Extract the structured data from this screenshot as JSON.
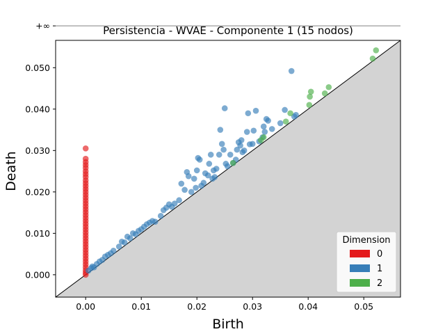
{
  "chart_data": {
    "type": "scatter",
    "title": "Persistencia - WVAE - Componente 1 (15 nodos)",
    "xlabel": "Birth",
    "ylabel": "Death",
    "xlim": [
      -0.0054,
      0.0566
    ],
    "ylim": [
      -0.0054,
      0.0566
    ],
    "infinity_label": "+∞",
    "infinity_value": 0.0601,
    "grid": false,
    "diagonal": true,
    "x_ticks": [
      {
        "value": 0.0,
        "label": "0.00"
      },
      {
        "value": 0.01,
        "label": "0.01"
      },
      {
        "value": 0.02,
        "label": "0.02"
      },
      {
        "value": 0.03,
        "label": "0.03"
      },
      {
        "value": 0.04,
        "label": "0.04"
      },
      {
        "value": 0.05,
        "label": "0.05"
      }
    ],
    "y_ticks": [
      {
        "value": 0.0,
        "label": "0.000"
      },
      {
        "value": 0.01,
        "label": "0.010"
      },
      {
        "value": 0.02,
        "label": "0.020"
      },
      {
        "value": 0.03,
        "label": "0.030"
      },
      {
        "value": 0.04,
        "label": "0.040"
      },
      {
        "value": 0.05,
        "label": "0.050"
      }
    ],
    "legend": {
      "title": "Dimension",
      "position": "lower-right"
    },
    "series": [
      {
        "name": "0",
        "color": "#e41a1c",
        "infinite_points": [
          [
            0.0
          ]
        ],
        "points": [
          [
            0.0,
            0.0305
          ],
          [
            0.0,
            0.028
          ],
          [
            0.0,
            0.0272
          ],
          [
            0.0,
            0.0265
          ],
          [
            0.0,
            0.0258
          ],
          [
            0.0,
            0.025
          ],
          [
            0.0,
            0.0243
          ],
          [
            0.0,
            0.0236
          ],
          [
            0.0,
            0.0228
          ],
          [
            0.0,
            0.0221
          ],
          [
            0.0,
            0.0214
          ],
          [
            0.0,
            0.0207
          ],
          [
            0.0,
            0.02
          ],
          [
            0.0,
            0.0193
          ],
          [
            0.0,
            0.0186
          ],
          [
            0.0,
            0.0179
          ],
          [
            0.0,
            0.0172
          ],
          [
            0.0,
            0.0165
          ],
          [
            0.0,
            0.0158
          ],
          [
            0.0,
            0.0151
          ],
          [
            0.0,
            0.0144
          ],
          [
            0.0,
            0.0137
          ],
          [
            0.0,
            0.013
          ],
          [
            0.0,
            0.0123
          ],
          [
            0.0,
            0.0116
          ],
          [
            0.0,
            0.0109
          ],
          [
            0.0,
            0.0102
          ],
          [
            0.0,
            0.0095
          ],
          [
            0.0,
            0.0088
          ],
          [
            0.0,
            0.0081
          ],
          [
            0.0,
            0.0074
          ],
          [
            0.0,
            0.0067
          ],
          [
            0.0,
            0.006
          ],
          [
            0.0,
            0.0053
          ],
          [
            0.0,
            0.0046
          ],
          [
            0.0,
            0.0039
          ],
          [
            0.0,
            0.0032
          ],
          [
            0.0,
            0.0025
          ],
          [
            0.0,
            0.0018
          ],
          [
            0.0,
            0.0011
          ],
          [
            0.0,
            0.0005
          ],
          [
            0.0,
            0.0
          ]
        ]
      },
      {
        "name": "1",
        "color": "#377eb8",
        "points": [
          [
            0.0005,
            0.001
          ],
          [
            0.001,
            0.0016
          ],
          [
            0.0012,
            0.002
          ],
          [
            0.0015,
            0.0018
          ],
          [
            0.002,
            0.0026
          ],
          [
            0.0025,
            0.0032
          ],
          [
            0.003,
            0.0036
          ],
          [
            0.0035,
            0.0044
          ],
          [
            0.004,
            0.0048
          ],
          [
            0.0045,
            0.0052
          ],
          [
            0.005,
            0.0058
          ],
          [
            0.006,
            0.0068
          ],
          [
            0.0065,
            0.008
          ],
          [
            0.007,
            0.0078
          ],
          [
            0.0075,
            0.0092
          ],
          [
            0.008,
            0.0088
          ],
          [
            0.0085,
            0.01
          ],
          [
            0.009,
            0.0098
          ],
          [
            0.0095,
            0.0106
          ],
          [
            0.01,
            0.011
          ],
          [
            0.0105,
            0.0116
          ],
          [
            0.011,
            0.0122
          ],
          [
            0.0115,
            0.0126
          ],
          [
            0.012,
            0.013
          ],
          [
            0.0125,
            0.0128
          ],
          [
            0.0135,
            0.0142
          ],
          [
            0.014,
            0.0156
          ],
          [
            0.0145,
            0.0162
          ],
          [
            0.015,
            0.017
          ],
          [
            0.0155,
            0.0164
          ],
          [
            0.016,
            0.0172
          ],
          [
            0.0168,
            0.018
          ],
          [
            0.0172,
            0.022
          ],
          [
            0.0178,
            0.0205
          ],
          [
            0.0182,
            0.0248
          ],
          [
            0.0185,
            0.0238
          ],
          [
            0.019,
            0.02
          ],
          [
            0.0195,
            0.0232
          ],
          [
            0.0198,
            0.021
          ],
          [
            0.02,
            0.0252
          ],
          [
            0.0202,
            0.0282
          ],
          [
            0.0205,
            0.0278
          ],
          [
            0.0208,
            0.0215
          ],
          [
            0.0212,
            0.0222
          ],
          [
            0.0215,
            0.0245
          ],
          [
            0.022,
            0.024
          ],
          [
            0.0222,
            0.0268
          ],
          [
            0.0225,
            0.029
          ],
          [
            0.0228,
            0.0232
          ],
          [
            0.023,
            0.0252
          ],
          [
            0.0232,
            0.0236
          ],
          [
            0.0235,
            0.0256
          ],
          [
            0.024,
            0.029
          ],
          [
            0.0242,
            0.035
          ],
          [
            0.0245,
            0.0316
          ],
          [
            0.0248,
            0.0302
          ],
          [
            0.025,
            0.0402
          ],
          [
            0.0252,
            0.0268
          ],
          [
            0.0255,
            0.0262
          ],
          [
            0.026,
            0.029
          ],
          [
            0.0265,
            0.027
          ],
          [
            0.027,
            0.0278
          ],
          [
            0.0272,
            0.0302
          ],
          [
            0.0275,
            0.032
          ],
          [
            0.0278,
            0.0312
          ],
          [
            0.028,
            0.0325
          ],
          [
            0.0282,
            0.0296
          ],
          [
            0.0285,
            0.03
          ],
          [
            0.029,
            0.0345
          ],
          [
            0.0292,
            0.039
          ],
          [
            0.0295,
            0.0315
          ],
          [
            0.03,
            0.0316
          ],
          [
            0.0302,
            0.0348
          ],
          [
            0.0306,
            0.0396
          ],
          [
            0.0312,
            0.0322
          ],
          [
            0.0318,
            0.0332
          ],
          [
            0.032,
            0.0358
          ],
          [
            0.0322,
            0.0345
          ],
          [
            0.0325,
            0.0376
          ],
          [
            0.0328,
            0.0372
          ],
          [
            0.0335,
            0.0352
          ],
          [
            0.035,
            0.0366
          ],
          [
            0.0358,
            0.0398
          ],
          [
            0.037,
            0.0492
          ],
          [
            0.0375,
            0.0382
          ],
          [
            0.0378,
            0.0386
          ]
        ]
      },
      {
        "name": "2",
        "color": "#4daf4a",
        "points": [
          [
            0.0265,
            0.027
          ],
          [
            0.0315,
            0.0325
          ],
          [
            0.032,
            0.0332
          ],
          [
            0.036,
            0.037
          ],
          [
            0.0368,
            0.039
          ],
          [
            0.0402,
            0.041
          ],
          [
            0.0403,
            0.043
          ],
          [
            0.0405,
            0.0442
          ],
          [
            0.043,
            0.0438
          ],
          [
            0.0437,
            0.0453
          ],
          [
            0.0516,
            0.0522
          ],
          [
            0.0522,
            0.0542
          ]
        ]
      }
    ]
  }
}
